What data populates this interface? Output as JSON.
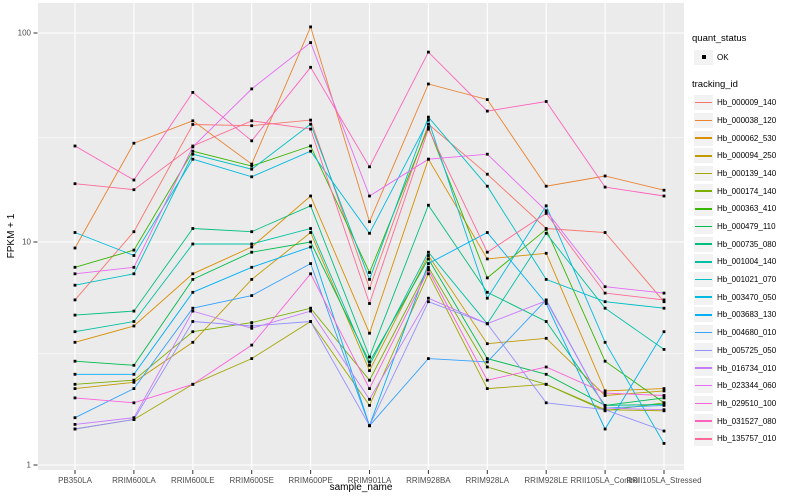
{
  "figure": {
    "legend": {
      "quant_status": {
        "title": "quant_status",
        "items": [
          {
            "label": "OK",
            "marker": "black-square"
          }
        ]
      },
      "tracking_id": {
        "title": "tracking_id"
      }
    }
  },
  "chart_data": {
    "type": "line",
    "title": "",
    "xlabel": "sample_name",
    "ylabel": "FPKM + 1",
    "y_scale": "log10",
    "ylim": [
      1,
      130
    ],
    "y_ticks": [
      1,
      10,
      100
    ],
    "y_tick_labels": [
      "1",
      "10",
      "100"
    ],
    "y_minor_ticks": [
      3.162,
      31.62
    ],
    "grid": true,
    "panel_bg": "#EBEBEB",
    "grid_color": "#FFFFFF",
    "axis_text_color": "#4D4D4D",
    "legend_position": "right",
    "marker": {
      "shape": "square",
      "color": "#000000",
      "legend_label": "OK"
    },
    "categories": [
      "PB350LA",
      "RRIM600LA",
      "RRIM600LE",
      "RRIM600SE",
      "RRIM600PE",
      "RRIM901LA",
      "RRIM928BA",
      "RRIM928LA",
      "RRIM928LE",
      "RRII105LA_Control",
      "RRII105LA_Stressed"
    ],
    "series": [
      {
        "name": "Hb_000009_140",
        "color": "#F8766D",
        "values": [
          5.5,
          11.2,
          36.5,
          36.0,
          38.3,
          6.2,
          36.6,
          21.1,
          11.6,
          11.1,
          5.4
        ]
      },
      {
        "name": "Hb_000038_120",
        "color": "#EA8331",
        "values": [
          9.4,
          29.7,
          38.0,
          23.6,
          107.0,
          12.5,
          57.0,
          48.0,
          18.5,
          20.7,
          17.7
        ]
      },
      {
        "name": "Hb_000062_530",
        "color": "#D89000",
        "values": [
          3.55,
          4.2,
          7.2,
          9.5,
          16.6,
          3.9,
          24.9,
          8.4,
          8.9,
          2.15,
          2.2
        ]
      },
      {
        "name": "Hb_000094_250",
        "color": "#C09B00",
        "values": [
          2.2,
          2.35,
          3.55,
          6.8,
          11.1,
          2.65,
          8.7,
          3.5,
          3.7,
          2.05,
          2.15
        ]
      },
      {
        "name": "Hb_000139_140",
        "color": "#A3A500",
        "values": [
          1.45,
          1.6,
          2.3,
          3.0,
          4.4,
          1.85,
          7.2,
          2.2,
          2.3,
          1.77,
          1.75
        ]
      },
      {
        "name": "Hb_000174_140",
        "color": "#7CAE00",
        "values": [
          2.3,
          2.4,
          3.96,
          4.35,
          5.05,
          2.4,
          7.7,
          2.75,
          2.3,
          1.75,
          1.9
        ]
      },
      {
        "name": "Hb_000363_410",
        "color": "#39B600",
        "values": [
          7.7,
          9.2,
          27.2,
          23.1,
          28.8,
          7.3,
          35.4,
          6.9,
          11.5,
          2.92,
          1.9
        ]
      },
      {
        "name": "Hb_000479_110",
        "color": "#00BB4E",
        "values": [
          2.92,
          2.8,
          6.8,
          9.0,
          10.0,
          2.9,
          8.4,
          3.0,
          2.55,
          1.85,
          2.0
        ]
      },
      {
        "name": "Hb_000735_080",
        "color": "#00BF7D",
        "values": [
          4.7,
          4.9,
          11.6,
          11.2,
          14.9,
          3.05,
          15.0,
          5.95,
          4.4,
          1.85,
          1.87
        ]
      },
      {
        "name": "Hb_001004_140",
        "color": "#00C1A3",
        "values": [
          3.96,
          4.4,
          9.8,
          9.8,
          11.6,
          2.8,
          9.0,
          4.3,
          11.0,
          5.05,
          3.3
        ]
      },
      {
        "name": "Hb_001021_070",
        "color": "#00BFC4",
        "values": [
          6.4,
          7.2,
          26.3,
          22.3,
          36.6,
          6.8,
          39.6,
          18.5,
          6.8,
          5.4,
          5.05
        ]
      },
      {
        "name": "Hb_003470_050",
        "color": "#00BAE0",
        "values": [
          11.1,
          8.7,
          24.9,
          20.5,
          27.2,
          11.0,
          38.3,
          5.6,
          14.9,
          3.55,
          1.25
        ]
      },
      {
        "name": "Hb_003683_130",
        "color": "#00B0F6",
        "values": [
          2.55,
          2.55,
          5.95,
          7.7,
          9.5,
          1.5,
          8.0,
          11.1,
          5.3,
          1.45,
          3.96
        ]
      },
      {
        "name": "Hb_004680_010",
        "color": "#35A2FF",
        "values": [
          1.63,
          2.2,
          5.05,
          5.75,
          8.0,
          1.5,
          3.0,
          2.9,
          5.5,
          1.8,
          1.85
        ]
      },
      {
        "name": "Hb_005725_050",
        "color": "#9590FF",
        "values": [
          1.45,
          1.6,
          4.4,
          4.2,
          4.4,
          1.5,
          5.4,
          4.3,
          1.9,
          1.77,
          1.42
        ]
      },
      {
        "name": "Hb_016734_010",
        "color": "#C77CFF",
        "values": [
          1.52,
          1.63,
          4.9,
          4.1,
          4.9,
          1.97,
          5.6,
          4.3,
          5.45,
          1.8,
          1.77
        ]
      },
      {
        "name": "Hb_023344_060",
        "color": "#E76BF3",
        "values": [
          7.2,
          7.7,
          28.5,
          54.0,
          90.0,
          16.6,
          24.9,
          26.3,
          14.1,
          6.3,
          5.9
        ]
      },
      {
        "name": "Hb_029510_100",
        "color": "#FA62DB",
        "values": [
          2.0,
          1.9,
          2.3,
          3.45,
          7.2,
          2.2,
          7.5,
          2.4,
          2.75,
          2.1,
          2.05
        ]
      },
      {
        "name": "Hb_031527_080",
        "color": "#FF62BC",
        "values": [
          28.8,
          19.8,
          52.0,
          30.5,
          68.5,
          22.9,
          81.0,
          42.3,
          47.0,
          18.3,
          16.6
        ]
      },
      {
        "name": "Hb_135757_010",
        "color": "#FF6A98",
        "values": [
          19.0,
          17.8,
          28.8,
          38.0,
          34.7,
          5.3,
          34.7,
          9.0,
          13.7,
          5.9,
          5.5
        ]
      }
    ]
  }
}
